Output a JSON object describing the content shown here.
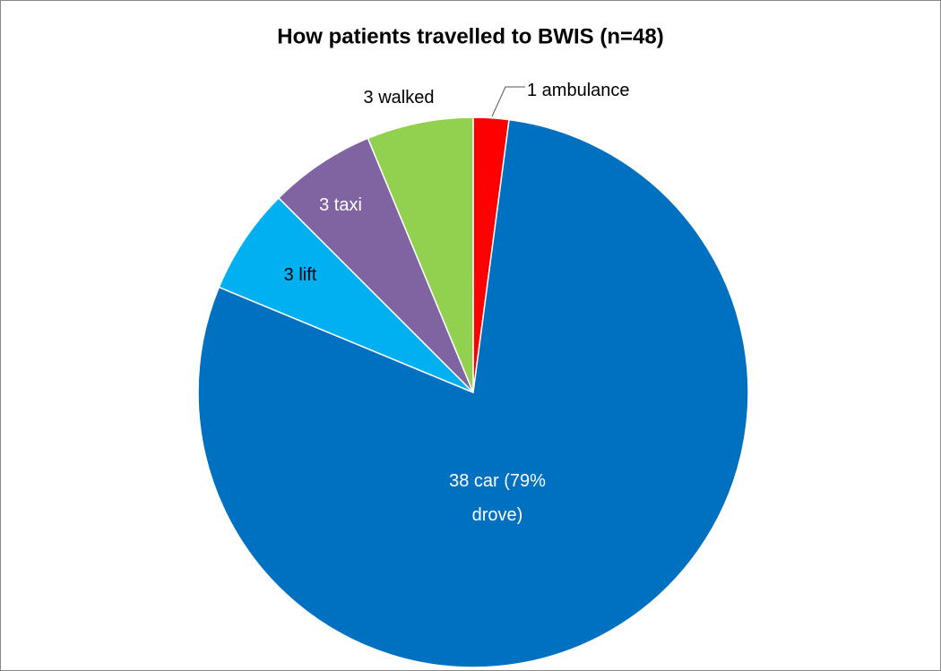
{
  "chart_data": {
    "type": "pie",
    "title": "How patients travelled to BWIS (n=48)",
    "values": [
      1,
      38,
      3,
      3,
      3
    ],
    "value_labels": [
      "1 ambulance",
      "38 car (79% drove)",
      "3 lift",
      "3 taxi",
      "3 walked"
    ],
    "colors": [
      "#ff0000",
      "#0070c0",
      "#00b0f0",
      "#8064a2",
      "#92d050"
    ]
  }
}
